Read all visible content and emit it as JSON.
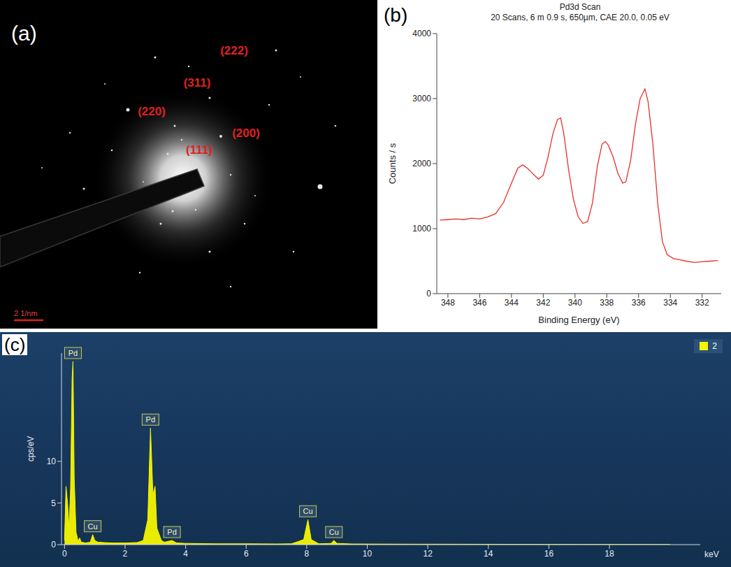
{
  "chart_data": [
    {
      "type": "image",
      "label": "(a)",
      "annotations": [
        "(222)",
        "(311)",
        "(220)",
        "(200)",
        "(111)"
      ],
      "scale_bar": "2 1/nm"
    },
    {
      "type": "line",
      "label": "(b)",
      "title": "Pd3d Scan",
      "subtitle": "20 Scans, 6 m 0.9 s, 650µm, CAE 20.0, 0.05 eV",
      "x_label": "Binding Energy (eV)",
      "y_label": "Counts / s",
      "color": "#e8302a",
      "x": [
        348.5,
        348,
        347.5,
        347,
        346.5,
        346,
        345.5,
        345,
        344.5,
        344,
        343.6,
        343.3,
        343,
        342.6,
        342.3,
        342,
        341.7,
        341.4,
        341.1,
        340.9,
        340.7,
        340.4,
        340.1,
        339.8,
        339.5,
        339.2,
        338.9,
        338.6,
        338.3,
        338.1,
        337.9,
        337.6,
        337.3,
        337,
        336.8,
        336.5,
        336.2,
        335.9,
        335.6,
        335.4,
        335.1,
        334.8,
        334.5,
        334.2,
        333.8,
        333.4,
        333,
        332.5,
        332,
        331.5,
        331
      ],
      "values": [
        1130,
        1140,
        1150,
        1140,
        1160,
        1150,
        1180,
        1230,
        1400,
        1700,
        1930,
        1980,
        1930,
        1830,
        1760,
        1820,
        2100,
        2450,
        2680,
        2700,
        2450,
        1900,
        1450,
        1180,
        1080,
        1110,
        1400,
        1950,
        2300,
        2340,
        2280,
        2100,
        1850,
        1700,
        1720,
        2050,
        2600,
        3000,
        3150,
        2950,
        2300,
        1400,
        800,
        600,
        540,
        520,
        500,
        480,
        490,
        500,
        510
      ],
      "xlim": [
        348.7,
        330.8
      ],
      "xticks": [
        348,
        346,
        344,
        342,
        340,
        338,
        336,
        334,
        332
      ],
      "ylim": [
        0,
        4000
      ],
      "yticks": [
        0,
        1000,
        2000,
        3000,
        4000
      ],
      "grid": false
    },
    {
      "type": "area",
      "label": "(c)",
      "x_label": "keV",
      "y_label": "cps/eV",
      "x": [
        0,
        0.05,
        0.1,
        0.15,
        0.2,
        0.25,
        0.28,
        0.32,
        0.38,
        0.45,
        0.5,
        0.55,
        0.7,
        0.85,
        0.93,
        1.0,
        1.1,
        1.3,
        1.6,
        2.0,
        2.4,
        2.6,
        2.75,
        2.84,
        2.92,
        2.99,
        3.05,
        3.2,
        3.3,
        3.55,
        3.7,
        4,
        5,
        6,
        7,
        7.5,
        7.9,
        8.04,
        8.15,
        8.4,
        8.8,
        8.9,
        9.0,
        9.5,
        11,
        13,
        15,
        17,
        19,
        20
      ],
      "series": [
        {
          "name": "2",
          "color": "#f5f500",
          "values": [
            0.5,
            7,
            5,
            2,
            6.8,
            20,
            22,
            8,
            1.5,
            0.4,
            0.8,
            0.3,
            0.2,
            0.3,
            1.2,
            0.5,
            0.3,
            0.25,
            0.2,
            0.2,
            0.25,
            0.5,
            3,
            14,
            6,
            7,
            2,
            0.5,
            0.3,
            0.5,
            0.2,
            0.15,
            0.1,
            0.1,
            0.08,
            0.1,
            0.6,
            3,
            0.6,
            0.1,
            0.15,
            0.5,
            0.15,
            0.08,
            0.06,
            0.05,
            0.04,
            0.03,
            0.03,
            0.02
          ]
        }
      ],
      "annotations": [
        {
          "text": "Pd",
          "x": 0.28,
          "y": 22
        },
        {
          "text": "Cu",
          "x": 0.93,
          "y": 1.2
        },
        {
          "text": "Pd",
          "x": 2.84,
          "y": 14
        },
        {
          "text": "Pd",
          "x": 3.55,
          "y": 0.5
        },
        {
          "text": "Cu",
          "x": 8.04,
          "y": 3
        },
        {
          "text": "Cu",
          "x": 8.9,
          "y": 0.5
        }
      ],
      "xlim": [
        -0.1,
        21
      ],
      "xticks": [
        0,
        2,
        4,
        6,
        8,
        10,
        12,
        14,
        16,
        18
      ],
      "ylim": [
        0,
        23
      ],
      "yticks": [
        0,
        5,
        10
      ],
      "legend": "top-right"
    }
  ]
}
